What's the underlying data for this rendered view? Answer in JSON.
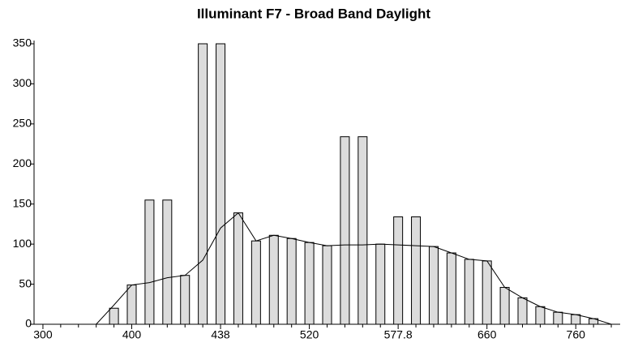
{
  "chart_data": {
    "type": "bar",
    "title": "Illuminant F7 - Broad Band Daylight",
    "categories": [
      "300",
      null,
      null,
      null,
      null,
      "400",
      null,
      null,
      null,
      null,
      "438",
      null,
      null,
      null,
      null,
      "520",
      null,
      null,
      null,
      null,
      "577.8",
      null,
      null,
      null,
      null,
      "660",
      null,
      null,
      null,
      null,
      "760",
      null,
      null
    ],
    "series": [
      {
        "type": "bar",
        "color": "#dcdcdc",
        "values": [
          0,
          0,
          0,
          0,
          20,
          49,
          155,
          155,
          61,
          350,
          350,
          139,
          104,
          111,
          107,
          102,
          98,
          234,
          234,
          100,
          134,
          134,
          97,
          89,
          81,
          79,
          46,
          33,
          22,
          15,
          12,
          7,
          0
        ]
      },
      {
        "type": "line",
        "color": "#000000",
        "values": [
          0,
          0,
          0,
          0,
          24,
          49,
          52,
          58,
          61,
          80,
          120,
          139,
          104,
          111,
          107,
          102,
          98,
          99,
          99,
          100,
          99,
          98,
          97,
          89,
          81,
          79,
          46,
          33,
          22,
          15,
          12,
          7,
          0
        ]
      }
    ],
    "ylim": [
      0,
      350
    ],
    "yticks": [
      0,
      50,
      100,
      150,
      200,
      250,
      300,
      350
    ]
  }
}
